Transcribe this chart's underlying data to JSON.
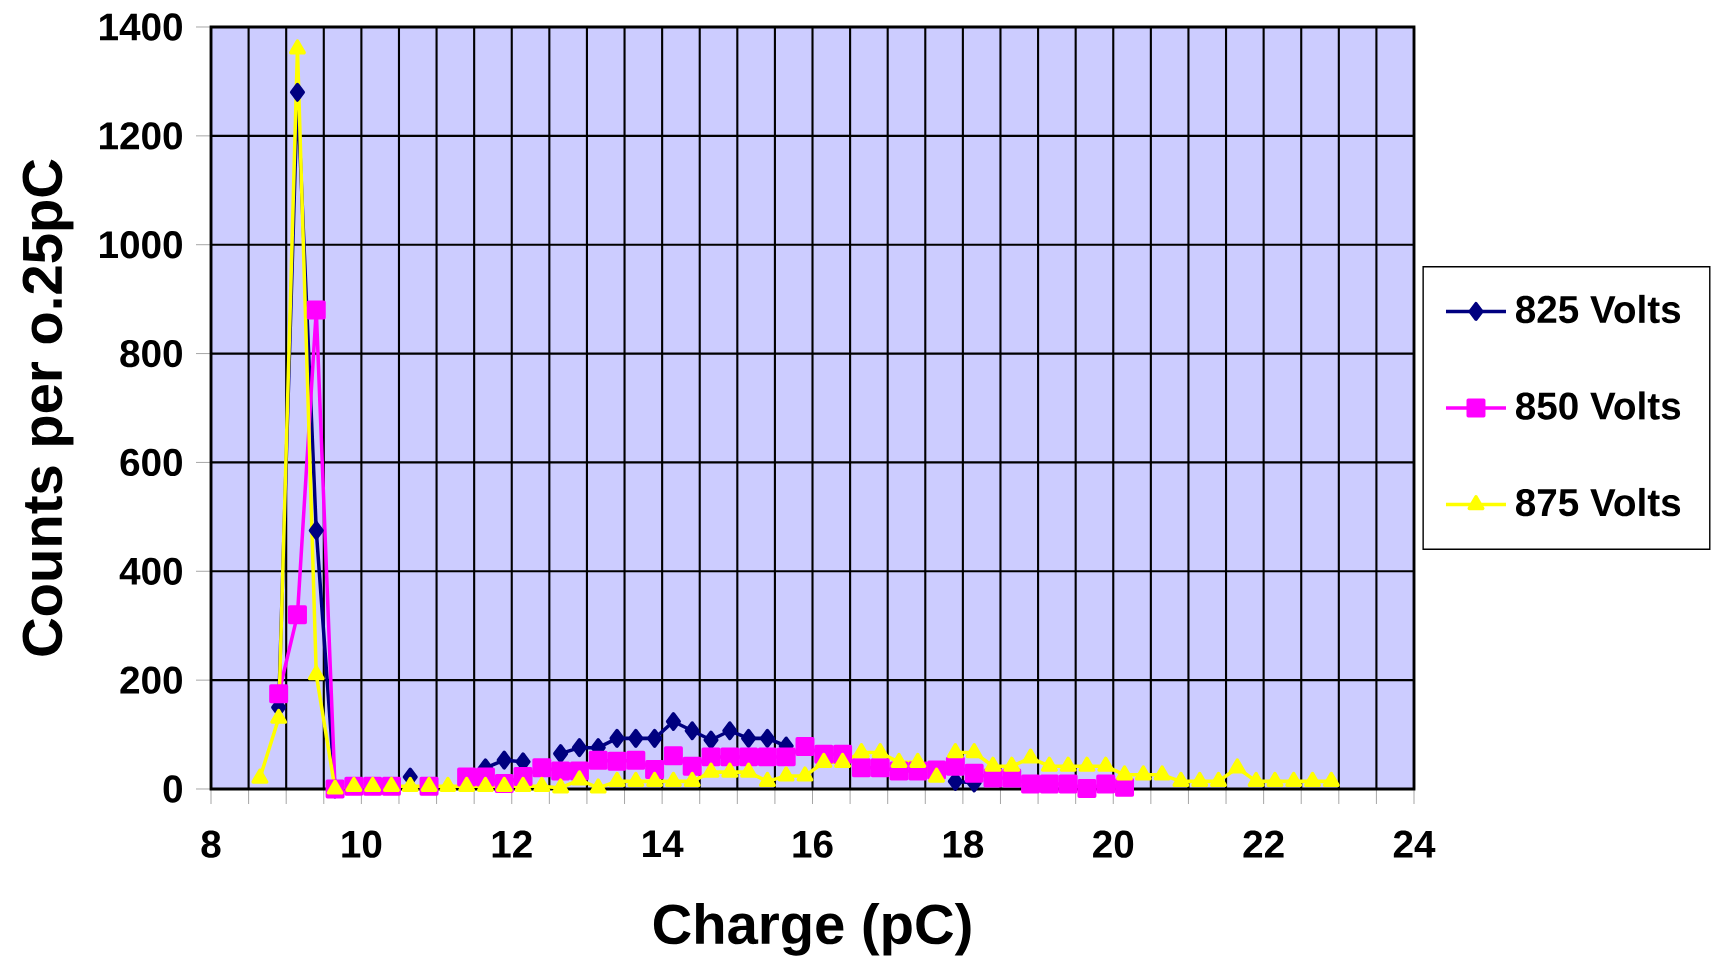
{
  "chart_data": {
    "type": "line",
    "xlabel": "Charge (pC)",
    "ylabel": "Counts per o.25pC",
    "x": [
      8.65,
      8.9,
      9.15,
      9.4,
      9.65,
      9.9,
      10.15,
      10.4,
      10.65,
      10.9,
      11.15,
      11.4,
      11.65,
      11.9,
      12.15,
      12.4,
      12.65,
      12.9,
      13.15,
      13.4,
      13.65,
      13.9,
      14.15,
      14.4,
      14.65,
      14.9,
      15.15,
      15.4,
      15.65,
      15.9,
      16.15,
      16.4,
      16.65,
      16.9,
      17.15,
      17.4,
      17.65,
      17.9,
      18.15,
      18.4,
      18.65,
      18.9,
      19.15,
      19.4,
      19.65,
      19.9,
      20.15,
      20.4,
      20.65,
      20.9,
      21.15,
      21.4,
      21.65,
      21.9,
      22.15,
      22.4,
      22.65,
      22.9
    ],
    "series": [
      {
        "name": "825 Volts",
        "color": "#000080",
        "marker": "diamond",
        "values": [
          null,
          150,
          1280,
          475,
          0,
          null,
          null,
          null,
          22,
          null,
          null,
          null,
          39,
          53,
          50,
          null,
          65,
          76,
          76,
          93,
          93,
          93,
          124,
          107,
          90,
          107,
          93,
          93,
          79,
          null,
          null,
          null,
          null,
          null,
          null,
          null,
          null,
          14,
          11,
          null,
          null,
          null,
          null,
          null,
          null,
          null,
          null,
          null,
          null,
          null,
          null,
          null,
          null,
          null,
          null,
          null,
          null,
          null
        ]
      },
      {
        "name": "850 Volts",
        "color": "#ff00ff",
        "marker": "square",
        "values": [
          null,
          175,
          320,
          880,
          0,
          5,
          5,
          5,
          null,
          5,
          null,
          22,
          22,
          10,
          23,
          39,
          33,
          33,
          53,
          51,
          53,
          36,
          61,
          42,
          59,
          59,
          59,
          59,
          59,
          78,
          64,
          64,
          39,
          39,
          33,
          33,
          35,
          42,
          29,
          20,
          20,
          9,
          9,
          9,
          1,
          9,
          3,
          null,
          null,
          null,
          null,
          null,
          null,
          null,
          null,
          null,
          null,
          null
        ]
      },
      {
        "name": "875 Volts",
        "color": "#ffff00",
        "marker": "triangle",
        "values": [
          20,
          130,
          1360,
          210,
          0,
          5,
          5,
          5,
          5,
          5,
          5,
          5,
          5,
          5,
          5,
          5,
          2,
          17,
          2,
          14,
          14,
          14,
          14,
          14,
          31,
          31,
          31,
          14,
          24,
          24,
          49,
          49,
          67,
          67,
          49,
          49,
          22,
          67,
          67,
          42,
          42,
          57,
          42,
          42,
          42,
          42,
          26,
          26,
          26,
          14,
          14,
          14,
          39,
          14,
          14,
          14,
          14,
          14
        ]
      }
    ],
    "xlim": [
      8,
      24
    ],
    "xticks": [
      8,
      {
        "value": 8.5,
        "label": null
      },
      10,
      {
        "value": 9,
        "label": null
      },
      {
        "value": 9.5,
        "label": null
      },
      {
        "value": 10.5,
        "label": null
      },
      {
        "value": 11,
        "label": null
      },
      {
        "value": 11.5,
        "label": null
      },
      12,
      {
        "value": 12.5,
        "label": null
      },
      {
        "value": 13,
        "label": null
      },
      {
        "value": 13.5,
        "label": null
      },
      14,
      {
        "value": 14.5,
        "label": null
      },
      {
        "value": 15,
        "label": null
      },
      {
        "value": 15.5,
        "label": null
      },
      16,
      {
        "value": 16.5,
        "label": null
      },
      {
        "value": 17,
        "label": null
      },
      {
        "value": 17.5,
        "label": null
      },
      18,
      {
        "value": 18.5,
        "label": null
      },
      {
        "value": 19,
        "label": null
      },
      {
        "value": 19.5,
        "label": null
      },
      20,
      {
        "value": 20.5,
        "label": null
      },
      {
        "value": 21,
        "label": null
      },
      {
        "value": 21.5,
        "label": null
      },
      22,
      {
        "value": 22.5,
        "label": null
      },
      {
        "value": 23,
        "label": null
      },
      {
        "value": 23.5,
        "label": null
      },
      24
    ],
    "ylim": [
      0,
      1400
    ],
    "yticks": [
      0,
      200,
      400,
      600,
      800,
      1000,
      1200,
      1400
    ],
    "grid": true,
    "legend": "right",
    "line_style": "solid"
  }
}
